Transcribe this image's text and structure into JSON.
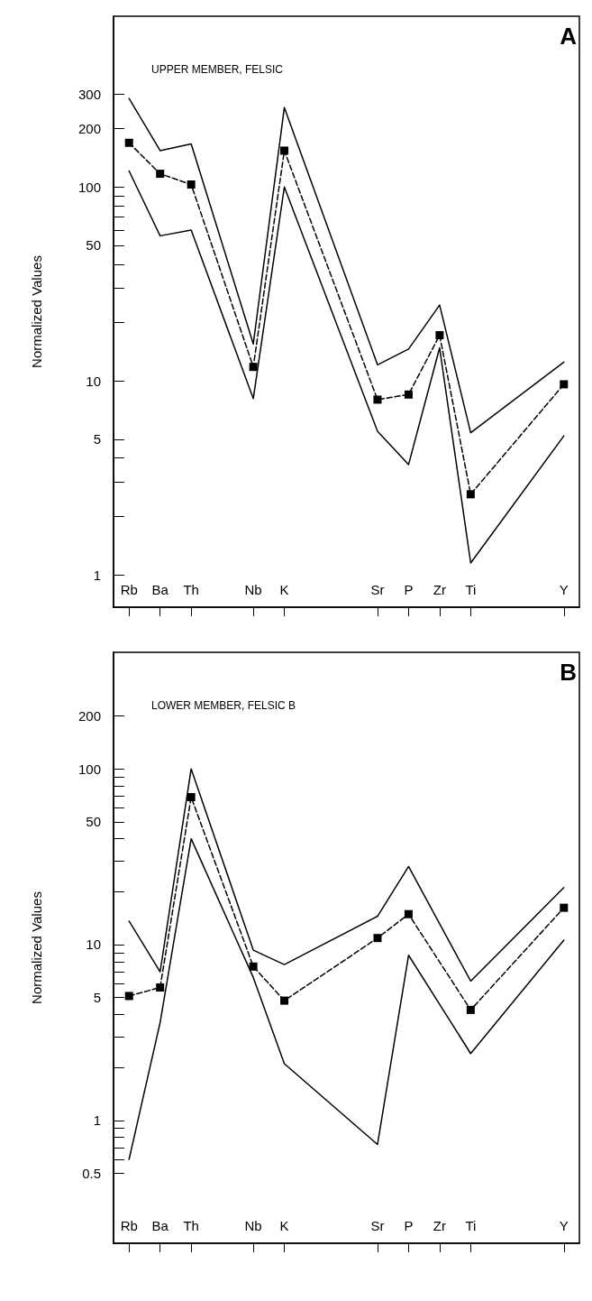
{
  "chart_data": [
    {
      "type": "line",
      "title": "A",
      "subtitle": "UPPER MEMBER, FELSIC",
      "ylabel": "Normalized Values",
      "categories": [
        "Rb",
        "Ba",
        "Th",
        null,
        "Nb",
        "K",
        null,
        null,
        "Sr",
        "P",
        "Zr",
        "Ti",
        null,
        null,
        "Y"
      ],
      "log": "y",
      "ylim": [
        0.68,
        760
      ],
      "yticks": [
        1,
        {
          "value": 2,
          "label": null
        },
        {
          "value": 3,
          "label": null
        },
        {
          "value": 4,
          "label": null
        },
        5,
        10,
        {
          "value": 20,
          "label": null
        },
        {
          "value": 30,
          "label": null
        },
        {
          "value": 40,
          "label": null
        },
        50,
        {
          "value": 60,
          "label": null
        },
        {
          "value": 70,
          "label": null
        },
        {
          "value": 80,
          "label": null
        },
        {
          "value": 90,
          "label": null
        },
        100,
        200,
        300
      ],
      "series": [
        {
          "color": "#000000",
          "line_style": "solid",
          "marker": "none",
          "values": [
            286,
            154,
            167,
            null,
            15.5,
            257,
            null,
            null,
            12.1,
            14.6,
            24.6,
            5.4,
            null,
            null,
            12.5
          ]
        },
        {
          "color": "#000000",
          "line_style": "dashed",
          "marker": "square",
          "values": [
            169,
            117,
            103,
            null,
            11.8,
            154,
            null,
            null,
            8.0,
            8.5,
            17.2,
            2.6,
            null,
            null,
            9.6
          ]
        },
        {
          "color": "#000000",
          "line_style": "solid",
          "marker": "none",
          "values": [
            121,
            56,
            60,
            null,
            8.1,
            100,
            null,
            null,
            5.5,
            3.7,
            14.8,
            1.15,
            null,
            null,
            5.2
          ]
        }
      ]
    },
    {
      "type": "line",
      "title": "B",
      "subtitle": "LOWER MEMBER, FELSIC B",
      "ylabel": "Normalized Values",
      "categories": [
        "Rb",
        "Ba",
        "Th",
        null,
        "Nb",
        "K",
        null,
        null,
        "Sr",
        "P",
        "Zr",
        "Ti",
        null,
        null,
        "Y"
      ],
      "log": "y",
      "ylim": [
        0.2,
        460
      ],
      "yticks": [
        0.5,
        {
          "value": 0.6,
          "label": null
        },
        {
          "value": 0.7,
          "label": null
        },
        {
          "value": 0.8,
          "label": null
        },
        {
          "value": 0.9,
          "label": null
        },
        1,
        {
          "value": 2,
          "label": null
        },
        {
          "value": 3,
          "label": null
        },
        {
          "value": 4,
          "label": null
        },
        5,
        {
          "value": 6,
          "label": null
        },
        {
          "value": 7,
          "label": null
        },
        {
          "value": 8,
          "label": null
        },
        {
          "value": 9,
          "label": null
        },
        10,
        {
          "value": 20,
          "label": null
        },
        {
          "value": 30,
          "label": null
        },
        {
          "value": 40,
          "label": null
        },
        50,
        {
          "value": 60,
          "label": null
        },
        {
          "value": 70,
          "label": null
        },
        {
          "value": 80,
          "label": null
        },
        {
          "value": 90,
          "label": null
        },
        100,
        200
      ],
      "series": [
        {
          "color": "#000000",
          "line_style": "solid",
          "marker": "none",
          "values": [
            13.6,
            7.0,
            100,
            null,
            9.3,
            7.7,
            null,
            null,
            14.5,
            27.8,
            null,
            6.2,
            null,
            null,
            21.1
          ]
        },
        {
          "color": "#000000",
          "line_style": "dashed",
          "marker": "square",
          "values": [
            5.1,
            5.7,
            69,
            null,
            7.5,
            4.8,
            null,
            null,
            10.9,
            14.9,
            null,
            4.25,
            null,
            null,
            16.2
          ]
        },
        {
          "color": "#000000",
          "line_style": "solid",
          "marker": "none",
          "values": [
            0.6,
            3.6,
            40,
            null,
            6.5,
            2.1,
            null,
            null,
            0.73,
            8.7,
            null,
            2.4,
            null,
            null,
            10.6
          ]
        }
      ]
    }
  ]
}
